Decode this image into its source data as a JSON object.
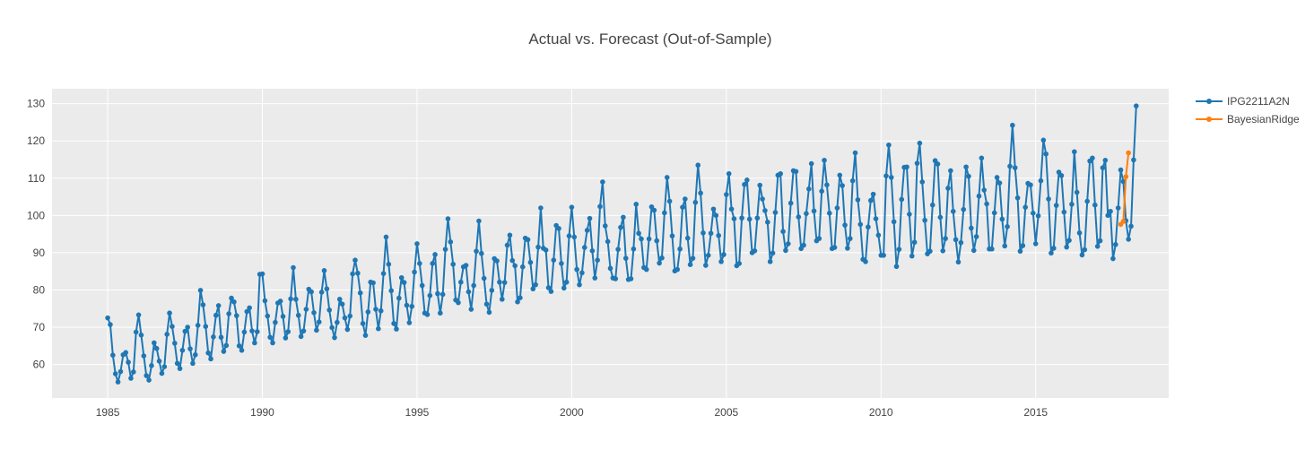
{
  "chart_data": {
    "type": "line",
    "title": "Actual vs. Forecast (Out-of-Sample)",
    "xlabel": "",
    "ylabel": "",
    "xlim": [
      1983.2,
      2019.3
    ],
    "ylim": [
      51,
      134
    ],
    "x_ticks": [
      1985,
      1990,
      1995,
      2000,
      2005,
      2010,
      2015
    ],
    "x_tick_labels": [
      "1985",
      "1990",
      "1995",
      "2000",
      "2005",
      "2010",
      "2015"
    ],
    "y_ticks": [
      60,
      70,
      80,
      90,
      100,
      110,
      120,
      130
    ],
    "y_tick_labels": [
      "60",
      "70",
      "80",
      "90",
      "100",
      "110",
      "120",
      "130"
    ],
    "grid": true,
    "legend_position": "top-right",
    "series": [
      {
        "name": "IPG2211A2N",
        "color": "#1f77b4",
        "x_start": "1985-01",
        "frequency": "monthly",
        "values": [
          72.5,
          70.7,
          62.5,
          57.5,
          55.3,
          58.1,
          62.6,
          63.2,
          60.6,
          56.3,
          58.0,
          68.7,
          73.3,
          67.9,
          62.3,
          57.0,
          55.8,
          59.7,
          65.8,
          64.3,
          60.9,
          57.6,
          59.4,
          68.1,
          73.8,
          70.2,
          65.7,
          60.3,
          58.9,
          63.8,
          68.9,
          70.0,
          64.2,
          60.3,
          62.6,
          70.5,
          79.9,
          76.0,
          70.2,
          63.1,
          61.5,
          67.4,
          73.2,
          75.8,
          67.3,
          63.5,
          65.1,
          73.6,
          77.8,
          76.8,
          73.1,
          65.0,
          63.8,
          68.7,
          74.2,
          75.2,
          69.0,
          65.8,
          68.8,
          84.2,
          84.3,
          77.1,
          73.0,
          67.3,
          65.8,
          71.3,
          76.5,
          77.0,
          72.9,
          67.1,
          68.8,
          77.6,
          86.0,
          77.5,
          73.2,
          67.5,
          69.0,
          74.8,
          80.2,
          79.5,
          73.9,
          69.2,
          71.4,
          79.4,
          85.2,
          80.3,
          74.6,
          69.9,
          67.2,
          71.3,
          77.5,
          76.2,
          72.5,
          69.4,
          73.0,
          84.3,
          88.0,
          84.5,
          79.2,
          71.0,
          67.8,
          74.1,
          82.1,
          81.9,
          74.8,
          69.6,
          74.4,
          84.4,
          94.2,
          86.9,
          79.8,
          71.0,
          69.5,
          77.8,
          83.3,
          82.0,
          75.9,
          71.2,
          75.6,
          84.8,
          92.4,
          87.1,
          81.2,
          73.8,
          73.4,
          78.5,
          87.1,
          89.5,
          79.0,
          73.8,
          78.8,
          90.9,
          99.1,
          92.9,
          86.9,
          77.3,
          76.6,
          82.1,
          86.2,
          86.6,
          79.5,
          74.8,
          81.2,
          90.4,
          98.5,
          89.8,
          83.1,
          76.2,
          74.0,
          79.9,
          88.4,
          87.8,
          82.1,
          77.5,
          82.0,
          92.0,
          94.7,
          87.9,
          86.5,
          76.8,
          77.9,
          86.2,
          93.9,
          93.5,
          87.4,
          80.3,
          81.4,
          91.5,
          102.0,
          91.2,
          90.7,
          80.6,
          79.6,
          88.0,
          97.3,
          96.5,
          87.1,
          80.5,
          82.1,
          94.5,
          102.2,
          94.2,
          85.5,
          81.4,
          84.6,
          91.4,
          96.0,
          99.2,
          90.5,
          83.2,
          88.0,
          102.4,
          109.0,
          97.2,
          93.0,
          85.8,
          83.2,
          83.0,
          90.9,
          96.8,
          99.5,
          88.5,
          82.8,
          83.0,
          91.0,
          103.0,
          95.2,
          93.7,
          86.0,
          85.5,
          93.7,
          102.3,
          101.4,
          93.2,
          87.2,
          88.6,
          100.7,
          110.2,
          103.8,
          94.5,
          85.1,
          85.5,
          91.0,
          102.2,
          104.4,
          93.9,
          86.8,
          88.5,
          103.5,
          113.5,
          106.0,
          95.3,
          86.6,
          89.3,
          95.2,
          101.7,
          100.0,
          94.6,
          87.6,
          89.5,
          105.6,
          111.2,
          101.7,
          99.1,
          86.5,
          87.1,
          99.3,
          108.3,
          109.5,
          99.0,
          90.0,
          90.5,
          99.3,
          108.1,
          104.4,
          101.3,
          98.2,
          87.6,
          89.9,
          100.8,
          110.8,
          111.2,
          95.7,
          90.6,
          92.4,
          103.3,
          112.0,
          111.8,
          99.6,
          91.1,
          92.0,
          100.5,
          107.1,
          113.9,
          101.2,
          93.2,
          93.8,
          106.5,
          114.8,
          108.2,
          100.6,
          91.1,
          91.4,
          102.0,
          110.8,
          108.0,
          97.4,
          91.2,
          93.8,
          109.3,
          116.8,
          104.2,
          97.6,
          88.2,
          87.6,
          96.9,
          104.0,
          105.7,
          99.1,
          94.7,
          89.3,
          89.3,
          110.6,
          118.9,
          110.2,
          98.3,
          86.3,
          90.9,
          104.3,
          112.9,
          113.0,
          100.3,
          89.1,
          92.8,
          114.0,
          119.4,
          109.0,
          98.7,
          89.7,
          90.4,
          102.8,
          114.7,
          113.8,
          99.5,
          90.5,
          93.8,
          107.3,
          112.0,
          101.1,
          93.5,
          87.5,
          92.7,
          101.6,
          113.0,
          110.5,
          96.6,
          90.6,
          94.3,
          105.2,
          115.4,
          106.8,
          103.1,
          91.0,
          91.0,
          100.7,
          110.2,
          108.7,
          99.0,
          91.8,
          97.0,
          113.2,
          124.2,
          112.8,
          104.7,
          90.4,
          91.9,
          102.2,
          108.6,
          108.2,
          100.6,
          92.4,
          99.9,
          109.3,
          120.2,
          116.5,
          104.4,
          89.9,
          91.2,
          102.7,
          111.6,
          110.7,
          100.9,
          91.5,
          93.3,
          103.0,
          117.1,
          106.2,
          95.3,
          89.4,
          90.8,
          103.8,
          114.6,
          115.4,
          102.8,
          91.7,
          93.2,
          112.8,
          114.8,
          100.0,
          101.1,
          88.4,
          92.2,
          102.0,
          112.2,
          109.1,
          98.6,
          93.6,
          97.1,
          114.9,
          129.4
        ]
      },
      {
        "name": "BayesianRidge",
        "color": "#ff7f0e",
        "x": [
          "2017-10",
          "2017-11",
          "2017-12",
          "2018-01"
        ],
        "values": [
          97.6,
          98.4,
          110.4,
          116.8
        ]
      }
    ]
  }
}
